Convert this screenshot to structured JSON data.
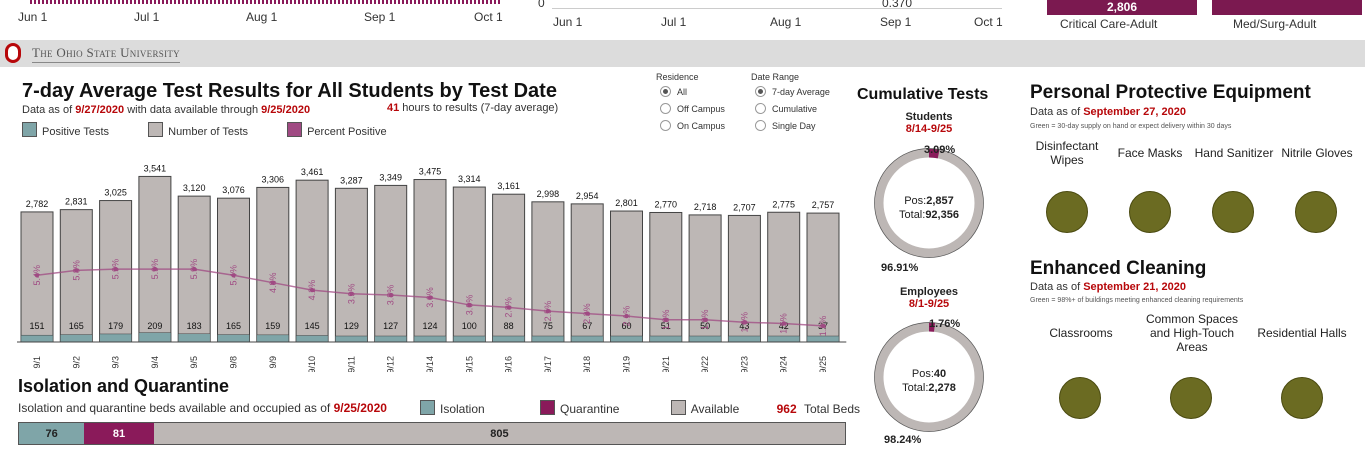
{
  "top": {
    "left_ticks": [
      "Jun 1",
      "Jul 1",
      "Aug 1",
      "Sep 1",
      "Oct 1"
    ],
    "mid_zero": "0",
    "mid_ticks": [
      "Jun 1",
      "Jul 1",
      "Aug 1",
      "Sep 1",
      "Oct 1"
    ],
    "mid_value": "0.370",
    "pill1_value": "2,806",
    "pill1_label": "Critical Care-Adult",
    "pill2_label": "Med/Surg-Adult"
  },
  "header": {
    "university": "The Ohio State University"
  },
  "tests": {
    "title": "7-day Average Test Results for All Students by Test Date",
    "asof_prefix": "Data as of ",
    "asof_date": "9/27/2020",
    "asof_mid": " with data available through ",
    "asof_through": "9/25/2020",
    "hours_value": "41",
    "hours_text": " hours to results (7-day average)",
    "legend": {
      "positive": "Positive Tests",
      "number": "Number of Tests",
      "percent": "Percent Positive"
    }
  },
  "filters": {
    "residence_title": "Residence",
    "residence_options": [
      "All",
      "Off Campus",
      "On Campus"
    ],
    "daterange_title": "Date Range",
    "daterange_options": [
      "7-day Average",
      "Cumulative",
      "Single Day"
    ]
  },
  "colors": {
    "positive": "#7fa5a8",
    "tests": "#bdb7b5",
    "percent": "#a04a83",
    "quarantine": "#8a1a5a",
    "scarlet": "#b7070a",
    "ppe_dot": "#6b6b22"
  },
  "chart_data": {
    "type": "bar",
    "categories": [
      "9/1",
      "9/2",
      "9/3",
      "9/4",
      "9/5",
      "9/8",
      "9/9",
      "9/10",
      "9/11",
      "9/12",
      "9/14",
      "9/15",
      "9/16",
      "9/17",
      "9/18",
      "9/19",
      "9/21",
      "9/22",
      "9/23",
      "9/24",
      "9/25"
    ],
    "series": [
      {
        "name": "Number of Tests",
        "values": [
          2782,
          2831,
          3025,
          3541,
          3120,
          3076,
          3306,
          3461,
          3287,
          3349,
          3475,
          3314,
          3161,
          2998,
          2954,
          2801,
          2770,
          2718,
          2707,
          2775,
          2757
        ]
      },
      {
        "name": "Positive Tests",
        "values": [
          151,
          165,
          179,
          209,
          183,
          165,
          159,
          145,
          129,
          127,
          124,
          100,
          88,
          75,
          67,
          60,
          51,
          50,
          43,
          42,
          37
        ]
      },
      {
        "name": "Percent Positive",
        "values": [
          5.4,
          5.8,
          5.9,
          5.9,
          5.9,
          5.4,
          4.8,
          4.2,
          3.9,
          3.8,
          3.6,
          3.0,
          2.8,
          2.5,
          2.3,
          2.1,
          1.8,
          1.8,
          1.6,
          1.5,
          1.3
        ]
      }
    ],
    "value_labels": [
      "2,782",
      "2,831",
      "3,025",
      "3,541",
      "3,120",
      "3,076",
      "3,306",
      "3,461",
      "3,287",
      "3,349",
      "3,475",
      "3,314",
      "3,161",
      "2,998",
      "2,954",
      "2,801",
      "2,770",
      "2,718",
      "2,707",
      "2,775",
      "2,757"
    ],
    "pct_labels": [
      "5.4%",
      "5.8%",
      "5.9%",
      "5.9%",
      "5.9%",
      "5.4%",
      "4.8%",
      "4.2%",
      "3.9%",
      "3.8%",
      "3.6%",
      "3.0%",
      "2.8%",
      "2.5%",
      "2.3%",
      "2.1%",
      "1.8%",
      "1.8%",
      "1.6%",
      "1.5%",
      "1.3%"
    ],
    "ylim": [
      0,
      3700
    ],
    "pct_range": [
      0,
      14
    ]
  },
  "cumulative": {
    "title": "Cumulative Tests",
    "students": {
      "label": "Students",
      "range": "8/14-9/25",
      "pct_pos": "3.09%",
      "pct_neg": "96.91%",
      "pos_label": "Pos:",
      "pos": "2,857",
      "total_label": "Total:",
      "total": "92,356",
      "pos_fraction": 0.0309
    },
    "employees": {
      "label": "Employees",
      "range": "8/1-9/25",
      "pct_pos": "1.76%",
      "pct_neg": "98.24%",
      "pos_label": "Pos:",
      "pos": "40",
      "total_label": "Total:",
      "total": "2,278",
      "pos_fraction": 0.0176
    }
  },
  "ppe": {
    "title": "Personal Protective Equipment",
    "asof_prefix": "Data as of ",
    "asof_date": "September 27, 2020",
    "note": "Green = 30-day supply on hand or expect delivery within 30 days",
    "items": [
      "Disinfectant Wipes",
      "Face Masks",
      "Hand Sanitizer",
      "Nitrile Gloves"
    ]
  },
  "cleaning": {
    "title": "Enhanced Cleaning",
    "asof_prefix": "Data as of ",
    "asof_date": "September 21, 2020",
    "note": "Green = 98%+ of buildings meeting enhanced cleaning requirements",
    "items": [
      "Classrooms",
      "Common Spaces and High-Touch Areas",
      "Residential Halls"
    ]
  },
  "isolation": {
    "title": "Isolation and Quarantine",
    "subtitle_prefix": "Isolation and quarantine beds available and occupied as of ",
    "subtitle_date": "9/25/2020",
    "legend_isolation": "Isolation",
    "legend_quarantine": "Quarantine",
    "legend_available": "Available",
    "total_value": "962",
    "total_label": "Total Beds",
    "isolation": 76,
    "quarantine": 81,
    "available": 805,
    "isolation_label": "76",
    "quarantine_label": "81",
    "available_label": "805"
  }
}
